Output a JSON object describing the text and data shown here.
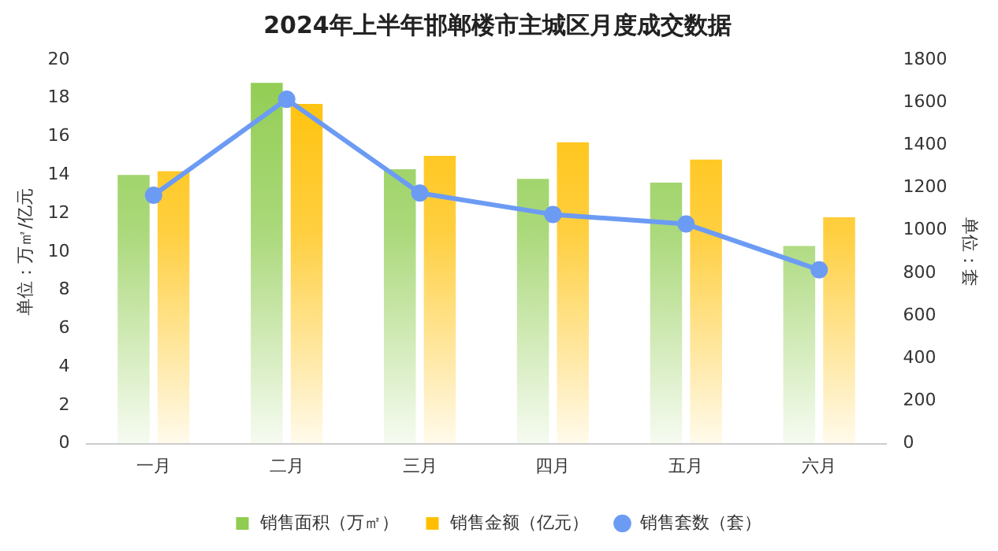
{
  "chart_data": {
    "type": "bar",
    "title": "2024年上半年邯郸楼市主城区月度成交数据",
    "ylabel": "单位：万㎡/亿元",
    "y2label": "单位：套",
    "categories": [
      "一月",
      "二月",
      "三月",
      "四月",
      "五月",
      "六月"
    ],
    "series": [
      {
        "name": "销售面积（万㎡）",
        "color": "#8fcc4f",
        "values": [
          14.0,
          18.8,
          14.3,
          13.8,
          13.6,
          10.3
        ]
      },
      {
        "name": "销售金额（亿元）",
        "color": "#ffbf00",
        "values": [
          14.2,
          17.7,
          15.0,
          15.7,
          14.8,
          11.8
        ]
      },
      {
        "name": "销售套数（套）",
        "type": "line",
        "axis": "y2",
        "color": "#6c9bf4",
        "marker": "circle",
        "values": [
          1165,
          1615,
          1175,
          1075,
          1030,
          815
        ]
      }
    ],
    "ylim": [
      0,
      20
    ],
    "yticks": [
      0,
      2,
      4,
      6,
      8,
      10,
      12,
      14,
      16,
      18,
      20
    ],
    "y2lim": [
      0,
      1800
    ],
    "y2ticks": [
      0,
      200,
      400,
      600,
      800,
      1000,
      1200,
      1400,
      1600,
      1800
    ],
    "grid": false,
    "legend": "bottom"
  }
}
